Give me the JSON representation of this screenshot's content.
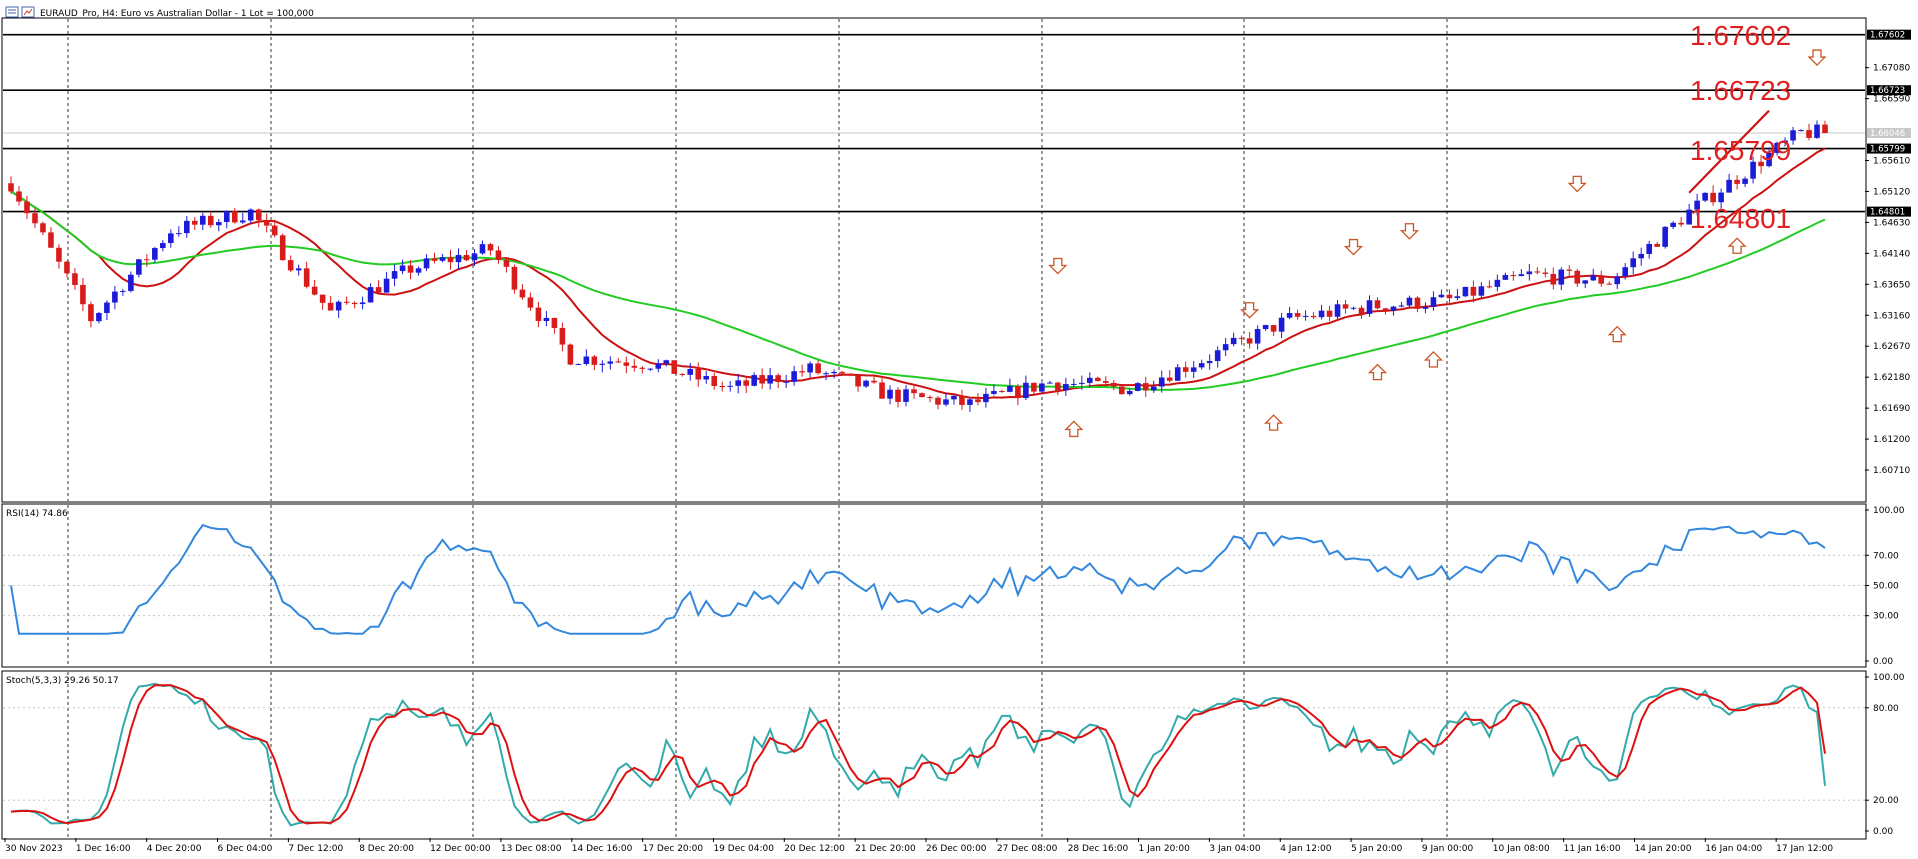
{
  "window": {
    "title": "EURAUD_Pro, H4:  Euro vs Australian Dollar - 1 Lot = 100,000",
    "icons": [
      "chart-icon",
      "window-icon"
    ]
  },
  "colors": {
    "bull": "#1c1cd8",
    "bear": "#d81c1c",
    "ma_fast": "#cc1111",
    "ma_slow": "#22cc22",
    "rsi": "#3388dd",
    "stoch_main": "#33aaaa",
    "stoch_signal": "#dd1111",
    "annotation": "#e02020",
    "arrow": "#cc5522",
    "current_price_bg": "#c8c8c8"
  },
  "price_panel": {
    "ymin": 1.6022,
    "ymax": 1.6785,
    "ticks": [
      "1.67080",
      "1.66590",
      "1.65610",
      "1.65120",
      "1.64630",
      "1.64140",
      "1.63650",
      "1.63160",
      "1.62670",
      "1.62180",
      "1.61690",
      "1.61200",
      "1.60710"
    ],
    "levels": [
      {
        "price": 1.67602,
        "tag": "1.67602",
        "note": "1.67602"
      },
      {
        "price": 1.66723,
        "tag": "1.66723",
        "note": "1.66723"
      },
      {
        "price": 1.65799,
        "tag": "1.65799",
        "note": "1.65799"
      },
      {
        "price": 1.64801,
        "tag": "1.64801",
        "note": "1.64801"
      }
    ],
    "current_price": {
      "price": 1.66046,
      "tag": "1.66046"
    }
  },
  "x_labels": [
    "30 Nov 2023",
    "1 Dec 16:00",
    "4 Dec 20:00",
    "6 Dec 04:00",
    "7 Dec 12:00",
    "8 Dec 20:00",
    "12 Dec 00:00",
    "13 Dec 08:00",
    "14 Dec 16:00",
    "17 Dec 20:00",
    "19 Dec 04:00",
    "20 Dec 12:00",
    "21 Dec 20:00",
    "26 Dec 00:00",
    "27 Dec 08:00",
    "28 Dec 16:00",
    "1 Jan 20:00",
    "3 Jan 04:00",
    "4 Jan 12:00",
    "5 Jan 20:00",
    "9 Jan 00:00",
    "10 Jan 08:00",
    "11 Jan 16:00",
    "14 Jan 20:00",
    "16 Jan 04:00",
    "17 Jan 12:00"
  ],
  "rsi_panel": {
    "label": "RSI(14) 74.86",
    "ymin": 0,
    "ymax": 100,
    "ticks": [
      "100.00",
      "70.00",
      "50.00",
      "30.00",
      "0.00"
    ]
  },
  "stoch_panel": {
    "label": "Stoch(5,3,3) 29.26 50.17",
    "ymin": 0,
    "ymax": 100,
    "ticks": [
      "100.00",
      "80.00",
      "20.00",
      "0.00"
    ]
  },
  "chart_data": [
    {
      "type": "candlestick",
      "title": "EURAUD_Pro, H4:  Euro vs Australian Dollar - 1 Lot = 100,000",
      "x_range": [
        "30 Nov 2023",
        "17 Jan 12:00"
      ],
      "key_points": [
        {
          "bar": 0,
          "close": 1.6525
        },
        {
          "bar": 10,
          "close": 1.631
        },
        {
          "bar": 20,
          "close": 1.645
        },
        {
          "bar": 30,
          "close": 1.648
        },
        {
          "bar": 40,
          "close": 1.632
        },
        {
          "bar": 50,
          "close": 1.639
        },
        {
          "bar": 60,
          "close": 1.642
        },
        {
          "bar": 70,
          "close": 1.625
        },
        {
          "bar": 80,
          "close": 1.624
        },
        {
          "bar": 90,
          "close": 1.62
        },
        {
          "bar": 100,
          "close": 1.623
        },
        {
          "bar": 110,
          "close": 1.619
        },
        {
          "bar": 120,
          "close": 1.6175
        },
        {
          "bar": 130,
          "close": 1.621
        },
        {
          "bar": 140,
          "close": 1.62
        },
        {
          "bar": 150,
          "close": 1.625
        },
        {
          "bar": 160,
          "close": 1.631
        },
        {
          "bar": 170,
          "close": 1.633
        },
        {
          "bar": 180,
          "close": 1.634
        },
        {
          "bar": 190,
          "close": 1.638
        },
        {
          "bar": 200,
          "close": 1.637
        },
        {
          "bar": 210,
          "close": 1.648
        },
        {
          "bar": 220,
          "close": 1.657
        },
        {
          "bar": 224,
          "close": 1.6605
        }
      ],
      "moving_averages": [
        {
          "color": "#cc1111",
          "period_hint": "fast"
        },
        {
          "color": "#22cc22",
          "period_hint": "slow"
        }
      ],
      "horizontal_levels": [
        1.67602,
        1.66723,
        1.65799,
        1.64801
      ],
      "arrows": {
        "down": [
          {
            "bar": 131,
            "price": 1.639
          },
          {
            "bar": 155,
            "price": 1.632
          },
          {
            "bar": 168,
            "price": 1.642
          },
          {
            "bar": 175,
            "price": 1.6445
          },
          {
            "bar": 196,
            "price": 1.652
          },
          {
            "bar": 226,
            "price": 1.672
          }
        ],
        "up": [
          {
            "bar": 133,
            "price": 1.614
          },
          {
            "bar": 158,
            "price": 1.615
          },
          {
            "bar": 171,
            "price": 1.623
          },
          {
            "bar": 178,
            "price": 1.625
          },
          {
            "bar": 201,
            "price": 1.629
          },
          {
            "bar": 216,
            "price": 1.643
          }
        ]
      }
    },
    {
      "type": "line",
      "title": "RSI(14) 74.86",
      "ylim": [
        0,
        100
      ],
      "last_value": 74.86
    },
    {
      "type": "line",
      "title": "Stoch(5,3,3) 29.26 50.17",
      "ylim": [
        0,
        100
      ],
      "series": [
        {
          "name": "",
          "last_value": 29.26
        },
        {
          "name": "",
          "last_value": 50.17
        }
      ]
    }
  ]
}
